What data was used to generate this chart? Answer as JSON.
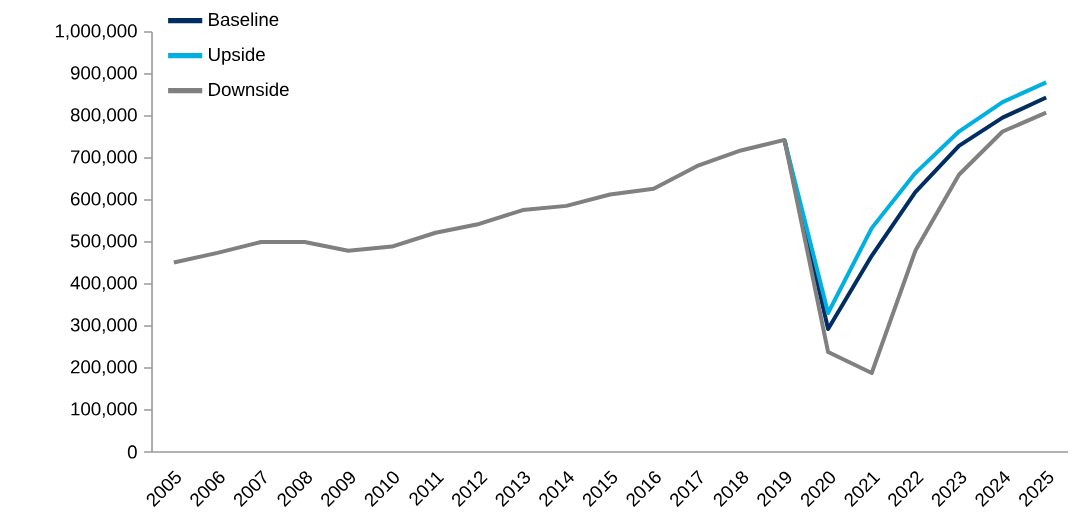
{
  "chart_data": {
    "type": "line",
    "categories": [
      "2005",
      "2006",
      "2007",
      "2008",
      "2009",
      "2010",
      "2011",
      "2012",
      "2013",
      "2014",
      "2015",
      "2016",
      "2017",
      "2018",
      "2019",
      "2020",
      "2021",
      "2022",
      "2023",
      "2024",
      "2025"
    ],
    "series": [
      {
        "name": "Baseline",
        "color": "#002d62",
        "values": [
          null,
          null,
          null,
          null,
          null,
          null,
          null,
          null,
          null,
          null,
          null,
          null,
          null,
          null,
          743000,
          293000,
          467000,
          619000,
          729000,
          796000,
          844000
        ]
      },
      {
        "name": "Upside",
        "color": "#00b0e0",
        "values": [
          null,
          null,
          null,
          null,
          null,
          null,
          null,
          null,
          null,
          null,
          null,
          null,
          null,
          null,
          743000,
          331000,
          533000,
          664000,
          763000,
          833000,
          880000
        ]
      },
      {
        "name": "Downside",
        "color": "#808080",
        "values": [
          451000,
          474000,
          500000,
          500000,
          479000,
          489000,
          522000,
          543000,
          576000,
          586000,
          613000,
          627000,
          681000,
          718000,
          743000,
          238000,
          188000,
          479000,
          660000,
          763000,
          808000
        ]
      }
    ],
    "ylim": [
      0,
      1000000
    ],
    "yticks": [
      {
        "value": 0,
        "label": "0"
      },
      {
        "value": 100000,
        "label": "100,000"
      },
      {
        "value": 200000,
        "label": "200,000"
      },
      {
        "value": 300000,
        "label": "300,000"
      },
      {
        "value": 400000,
        "label": "400,000"
      },
      {
        "value": 500000,
        "label": "500,000"
      },
      {
        "value": 600000,
        "label": "600,000"
      },
      {
        "value": 700000,
        "label": "700,000"
      },
      {
        "value": 800000,
        "label": "800,000"
      },
      {
        "value": 900000,
        "label": "900,000"
      },
      {
        "value": 1000000,
        "label": "1,000,000"
      }
    ],
    "legend": "top left"
  }
}
